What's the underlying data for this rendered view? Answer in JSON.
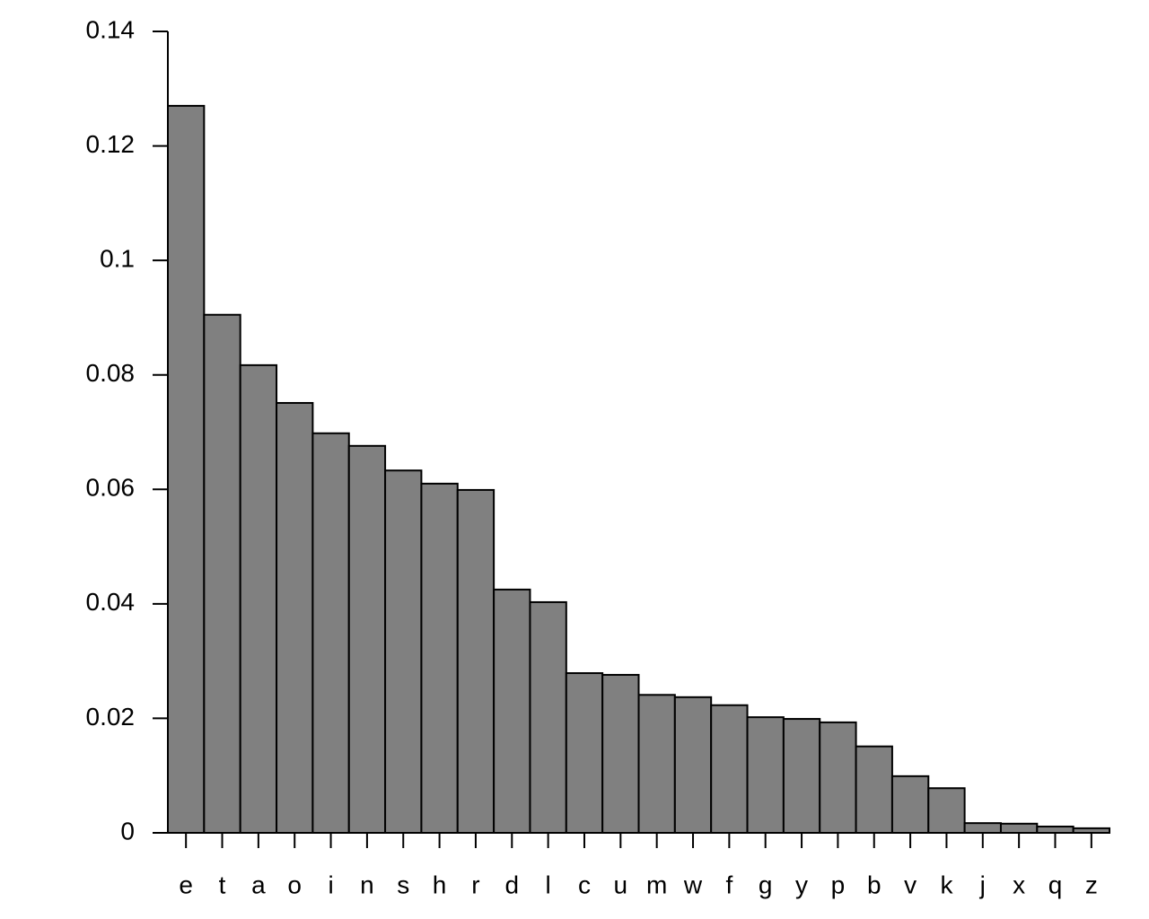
{
  "chart_data": {
    "type": "bar",
    "categories": [
      "e",
      "t",
      "a",
      "o",
      "i",
      "n",
      "s",
      "h",
      "r",
      "d",
      "l",
      "c",
      "u",
      "m",
      "w",
      "f",
      "g",
      "y",
      "p",
      "b",
      "v",
      "k",
      "j",
      "x",
      "q",
      "z"
    ],
    "values": [
      0.127,
      0.0905,
      0.0817,
      0.0751,
      0.0698,
      0.0676,
      0.0633,
      0.061,
      0.0599,
      0.0425,
      0.0403,
      0.0279,
      0.0276,
      0.0241,
      0.0237,
      0.0223,
      0.0202,
      0.0199,
      0.0193,
      0.0151,
      0.0099,
      0.0078,
      0.0017,
      0.0016,
      0.0011,
      0.0008
    ],
    "color": "#808080",
    "ylim": [
      0,
      0.14
    ],
    "yticks": [
      0,
      0.02,
      0.04,
      0.06,
      0.08,
      0.1,
      0.12,
      0.14
    ]
  }
}
